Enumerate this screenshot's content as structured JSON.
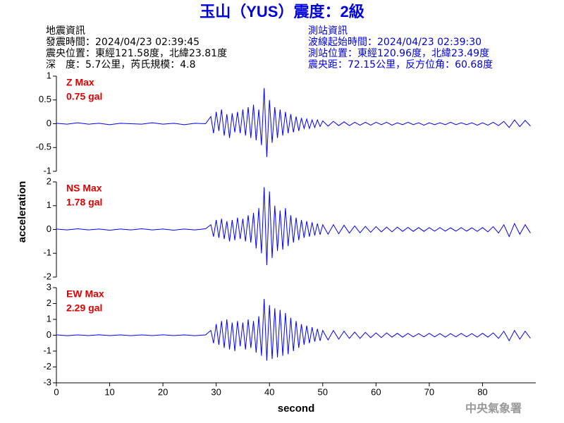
{
  "title": "玉山（YUS）震度：2級",
  "header": {
    "left": [
      "地震資訊",
      "發震時間：2024/04/23 02:39:45",
      "震央位置：東經121.58度，北緯23.81度",
      "深　度：5.7公里，芮氏規模：4.8"
    ],
    "right": [
      "測站資訊",
      "波線起始時間：2024/04/23 02:39:30",
      "測站位置：東經120.96度，北緯23.49度",
      "震央距：72.15公里，反方位角：60.68度"
    ]
  },
  "credit": "中央氣象署",
  "chart_data": [
    {
      "type": "line",
      "annotations": [
        "Z Max",
        "0.75 gal"
      ],
      "annotation_color": "#e00000",
      "xlim": [
        0,
        90
      ],
      "ylim": [
        -1,
        1
      ],
      "yticks": [
        -1,
        -0.5,
        0,
        0.5,
        1
      ],
      "x": [
        0,
        2,
        4,
        6,
        8,
        10,
        12,
        14,
        16,
        18,
        20,
        22,
        24,
        26,
        28,
        29,
        29.5,
        30,
        30.5,
        31,
        31.5,
        32,
        32.5,
        33,
        33.5,
        34,
        34.5,
        35,
        35.5,
        36,
        36.5,
        37,
        37.5,
        38,
        38.5,
        39,
        39.5,
        40,
        40.5,
        41,
        41.5,
        42,
        42.5,
        43,
        43.5,
        44,
        44.5,
        45,
        45.5,
        46,
        46.5,
        47,
        47.5,
        48,
        48.5,
        49,
        49.5,
        50,
        51,
        52,
        53,
        54,
        55,
        56,
        57,
        58,
        59,
        60,
        61,
        62,
        63,
        64,
        65,
        66,
        67,
        68,
        69,
        70,
        71,
        72,
        73,
        74,
        75,
        76,
        77,
        78,
        79,
        80,
        81,
        82,
        83,
        84,
        85,
        86,
        87,
        88,
        89
      ],
      "series": [
        {
          "color": "#0000ff",
          "values": [
            0.01,
            -0.01,
            0.02,
            -0.01,
            0.01,
            -0.02,
            0.01,
            0,
            -0.01,
            0.02,
            -0.01,
            0.01,
            -0.02,
            0.01,
            0,
            0.15,
            -0.2,
            0.25,
            -0.15,
            0.3,
            -0.25,
            0.2,
            -0.3,
            0.22,
            -0.18,
            0.25,
            -0.2,
            0.3,
            -0.25,
            0.35,
            -0.3,
            0.4,
            -0.35,
            0.3,
            -0.45,
            0.75,
            -0.7,
            0.5,
            -0.4,
            0.35,
            -0.3,
            0.3,
            -0.25,
            0.25,
            -0.2,
            0.2,
            -0.18,
            0.15,
            -0.15,
            0.12,
            -0.1,
            0.1,
            -0.1,
            0.08,
            -0.08,
            0.08,
            -0.06,
            0.06,
            -0.05,
            0.05,
            -0.04,
            0.04,
            -0.04,
            0.03,
            -0.03,
            0.03,
            -0.03,
            0.03,
            -0.02,
            0.03,
            -0.03,
            0.02,
            -0.02,
            0.03,
            -0.02,
            0.02,
            -0.03,
            0.02,
            -0.02,
            0.02,
            -0.02,
            0.03,
            -0.02,
            0.02,
            -0.02,
            0.02,
            -0.03,
            0.02,
            -0.03,
            0.03,
            -0.04,
            0.05,
            -0.08,
            0.08,
            -0.06,
            0.07,
            -0.05
          ]
        }
      ]
    },
    {
      "type": "line",
      "annotations": [
        "NS Max",
        "1.78 gal"
      ],
      "annotation_color": "#e00000",
      "ylabel": "acceleration",
      "xlim": [
        0,
        90
      ],
      "ylim": [
        -2,
        2
      ],
      "yticks": [
        -2,
        -1,
        0,
        1,
        2
      ],
      "x": [
        0,
        2,
        4,
        6,
        8,
        10,
        12,
        14,
        16,
        18,
        20,
        22,
        24,
        26,
        28,
        29,
        29.5,
        30,
        30.5,
        31,
        31.5,
        32,
        32.5,
        33,
        33.5,
        34,
        34.5,
        35,
        35.5,
        36,
        36.5,
        37,
        37.5,
        38,
        38.5,
        39,
        39.5,
        40,
        40.5,
        41,
        41.5,
        42,
        42.5,
        43,
        43.5,
        44,
        44.5,
        45,
        45.5,
        46,
        46.5,
        47,
        47.5,
        48,
        48.5,
        49,
        49.5,
        50,
        51,
        52,
        53,
        54,
        55,
        56,
        57,
        58,
        59,
        60,
        61,
        62,
        63,
        64,
        65,
        66,
        67,
        68,
        69,
        70,
        71,
        72,
        73,
        74,
        75,
        76,
        77,
        78,
        79,
        80,
        81,
        82,
        83,
        84,
        85,
        86,
        87,
        88,
        89
      ],
      "series": [
        {
          "color": "#0000ff",
          "values": [
            0.02,
            -0.02,
            0.03,
            -0.02,
            0.02,
            -0.03,
            0.02,
            -0.02,
            0.03,
            -0.02,
            0.02,
            -0.03,
            0.02,
            -0.02,
            0.03,
            0.2,
            -0.3,
            0.4,
            -0.35,
            0.45,
            -0.4,
            0.35,
            -0.5,
            0.4,
            -0.45,
            0.5,
            -0.4,
            0.45,
            -0.5,
            0.6,
            -0.55,
            0.7,
            -0.8,
            0.9,
            -1.0,
            1.78,
            -1.5,
            1.6,
            -1.2,
            1.0,
            -0.9,
            0.8,
            -0.85,
            0.9,
            -0.7,
            0.6,
            -0.55,
            0.5,
            -0.45,
            0.4,
            -0.35,
            0.35,
            -0.3,
            0.3,
            -0.25,
            0.25,
            -0.22,
            0.2,
            -0.2,
            0.2,
            -0.18,
            0.18,
            -0.15,
            0.15,
            -0.14,
            0.13,
            -0.12,
            0.12,
            -0.1,
            0.1,
            -0.1,
            0.1,
            -0.08,
            0.09,
            -0.08,
            0.08,
            -0.08,
            0.08,
            -0.07,
            0.08,
            -0.07,
            0.07,
            -0.07,
            0.08,
            -0.07,
            0.07,
            -0.08,
            0.08,
            -0.1,
            0.12,
            -0.15,
            0.2,
            -0.3,
            0.25,
            -0.2,
            0.2,
            -0.15
          ]
        }
      ]
    },
    {
      "type": "line",
      "annotations": [
        "EW Max",
        "2.29 gal"
      ],
      "annotation_color": "#e00000",
      "xlabel": "second",
      "xlim": [
        0,
        90
      ],
      "xticks": [
        0,
        10,
        20,
        30,
        40,
        50,
        60,
        70,
        80
      ],
      "ylim": [
        -3,
        3
      ],
      "yticks": [
        -3,
        -2,
        -1,
        0,
        1,
        2,
        3
      ],
      "x": [
        0,
        2,
        4,
        6,
        8,
        10,
        12,
        14,
        16,
        18,
        20,
        22,
        24,
        26,
        28,
        29,
        29.5,
        30,
        30.5,
        31,
        31.5,
        32,
        32.5,
        33,
        33.5,
        34,
        34.5,
        35,
        35.5,
        36,
        36.5,
        37,
        37.5,
        38,
        38.5,
        39,
        39.5,
        40,
        40.5,
        41,
        41.5,
        42,
        42.5,
        43,
        43.5,
        44,
        44.5,
        45,
        45.5,
        46,
        46.5,
        47,
        47.5,
        48,
        48.5,
        49,
        49.5,
        50,
        51,
        52,
        53,
        54,
        55,
        56,
        57,
        58,
        59,
        60,
        61,
        62,
        63,
        64,
        65,
        66,
        67,
        68,
        69,
        70,
        71,
        72,
        73,
        74,
        75,
        76,
        77,
        78,
        79,
        80,
        81,
        82,
        83,
        84,
        85,
        86,
        87,
        88,
        89
      ],
      "series": [
        {
          "color": "#0000ff",
          "values": [
            0.02,
            -0.03,
            0.02,
            -0.02,
            0.03,
            -0.02,
            0.02,
            -0.03,
            0.02,
            -0.02,
            0.03,
            -0.02,
            0.02,
            -0.03,
            0.02,
            0.3,
            -0.5,
            0.7,
            -0.6,
            0.9,
            -0.8,
            1.0,
            -0.9,
            0.8,
            -1.0,
            0.9,
            -0.7,
            0.8,
            -0.9,
            1.0,
            -0.8,
            0.9,
            -1.1,
            1.2,
            -1.3,
            2.29,
            -1.6,
            1.9,
            -1.5,
            1.7,
            -1.4,
            1.6,
            -1.3,
            1.4,
            -1.2,
            1.1,
            -1.0,
            0.9,
            -0.8,
            0.7,
            -0.6,
            0.6,
            -0.5,
            0.5,
            -0.4,
            0.4,
            -0.35,
            0.3,
            -0.3,
            0.3,
            -0.25,
            0.25,
            -0.2,
            0.2,
            -0.2,
            0.18,
            -0.15,
            0.15,
            -0.15,
            0.15,
            -0.12,
            0.12,
            -0.12,
            0.12,
            -0.1,
            0.1,
            -0.1,
            0.12,
            -0.1,
            0.1,
            -0.12,
            0.1,
            -0.1,
            0.12,
            -0.1,
            0.1,
            -0.12,
            0.12,
            -0.12,
            0.15,
            -0.2,
            0.25,
            -0.35,
            0.3,
            -0.25,
            0.25,
            -0.2
          ]
        }
      ]
    }
  ]
}
